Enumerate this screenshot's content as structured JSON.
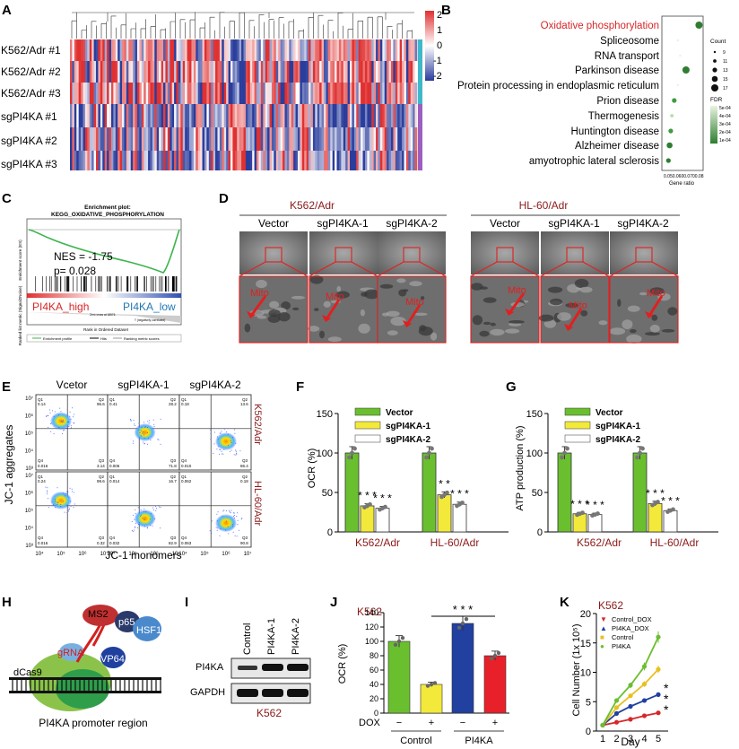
{
  "colors": {
    "red": "#d62728",
    "blue": "#2140a0",
    "green": "#6abf2e",
    "yellow": "#f2e93b",
    "darkred": "#8b1a1a",
    "teal": "#3fb8c8",
    "heat_red": "#e03030",
    "heat_blue": "#2a3d9c"
  },
  "panels": {
    "A": "A",
    "B": "B",
    "C": "C",
    "D": "D",
    "E": "E",
    "F": "F",
    "G": "G",
    "H": "H",
    "I": "I",
    "J": "J",
    "K": "K"
  },
  "panel_a": {
    "rows": [
      "K562/Adr #1",
      "K562/Adr #2",
      "K562/Adr #3",
      "sgPI4KA #1",
      "sgPI4KA #2",
      "sgPI4KA #3"
    ],
    "scale_ticks": [
      "2",
      "1",
      "0",
      "-1",
      "-2"
    ]
  },
  "panel_b": {
    "terms": [
      "Oxidative phosphorylation",
      "Spliceosome",
      "RNA transport",
      "Parkinson disease",
      "Protein processing in endoplasmic reticulum",
      "Prion disease",
      "Thermogenesis",
      "Huntington disease",
      "Alzheimer disease",
      "amyotrophic lateral sclerosis"
    ],
    "count_title": "Count",
    "count_values": [
      "9",
      "11",
      "13",
      "15",
      "17"
    ],
    "fdr_title": "FDR",
    "fdr_values": [
      "5e-04",
      "4e-04",
      "3e-04",
      "2e-04",
      "1e-04"
    ],
    "xlabel": "Gene ratio",
    "xticks": "0.050.0600.0700.08"
  },
  "panel_c": {
    "title": "Enrichment plot:",
    "subtitle": "KEGG_OXIDATIVE_PHOSPHORYLATION",
    "nes": "NES = -1.75",
    "p": "p= 0.028",
    "high": "PI4KA_high",
    "low": "PI4KA_low",
    "ylabel_top": "Enrichment score (ES)",
    "ylabel_bot": "Ranked list metric (Signal2Noise)",
    "xlabel": "Rank in Ordered Dataset",
    "legend": [
      "Enrichment profile",
      "Hits",
      "Ranking metric scores"
    ],
    "zero_note": "Zero cross at 18576",
    "neg_note": "'l' (negatively correlated)"
  },
  "panel_d": {
    "groups": [
      "K562/Adr",
      "HL-60/Adr"
    ],
    "cols": [
      "Vector",
      "sgPI4KA-1",
      "sgPI4KA-2"
    ],
    "mito": "Mito"
  },
  "panel_e": {
    "cols": [
      "Vcetor",
      "sgPI4KA-1",
      "sgPI4KA-2"
    ],
    "rows": [
      "K562/Adr",
      "HL-60/Adr"
    ],
    "ylabel": "JC-1 aggregates",
    "xlabel": "JC-1 monomers",
    "y_ticks": [
      "10⁷",
      "10⁶",
      "10⁵",
      "10⁴",
      "10³"
    ],
    "x_ticks": [
      "10⁴",
      "10⁵",
      "10⁶",
      "10⁷"
    ],
    "q_labels": [
      "Q1",
      "Q2",
      "Q3",
      "Q4"
    ],
    "q2_values": [
      "96.6",
      "28.2",
      "13.6",
      "99.6",
      "16.7",
      "0.18"
    ],
    "q4_values": [
      "0.016",
      "0.006",
      "0.010",
      "0.016",
      "0.032",
      "0.063"
    ],
    "q1_values": [
      "0.14",
      "0.41",
      "0.18",
      "0.24",
      "0.014",
      "0.062"
    ],
    "q3_values": [
      "3.14",
      "71.8",
      "86.4",
      "0.32",
      "82.9",
      "90.8"
    ]
  },
  "panel_f": {
    "ylabel": "OCR (%)",
    "legend": [
      "Vector",
      "sgPI4KA-1",
      "sgPI4KA-2"
    ],
    "yticks": [
      "0",
      "50",
      "100",
      "150"
    ],
    "groups": [
      "K562/Adr",
      "HL-60/Adr"
    ],
    "sig": [
      "* * *",
      "* * *",
      "* *",
      "* * *"
    ]
  },
  "panel_g": {
    "ylabel": "ATP production (%)",
    "legend": [
      "Vector",
      "sgPI4KA-1",
      "sgPI4KA-2"
    ],
    "yticks": [
      "0",
      "50",
      "100",
      "150"
    ],
    "groups": [
      "K562/Adr",
      "HL-60/Adr"
    ],
    "sig": [
      "* * *",
      "* * *",
      "* * *",
      "* * *"
    ]
  },
  "panel_h": {
    "labels": [
      "MS2",
      "p65",
      "HSF1",
      "gRNA",
      "VP64",
      "dCas9"
    ],
    "caption": "PI4KA promoter region"
  },
  "panel_i": {
    "lanes": [
      "Control",
      "PI4KA-1",
      "PI4KA-2"
    ],
    "bands": [
      "PI4KA",
      "GAPDH"
    ],
    "cell": "K562"
  },
  "panel_j": {
    "cell": "K562",
    "ylabel": "OCR (%)",
    "yticks": [
      "0",
      "20",
      "40",
      "60",
      "80",
      "100",
      "120",
      "140"
    ],
    "dox": "DOX",
    "signs": [
      "−",
      "+",
      "−",
      "+"
    ],
    "groups": [
      "Control",
      "PI4KA"
    ],
    "sig": "* * *"
  },
  "panel_k": {
    "cell": "K562",
    "ylabel": "Cell Number (1x 10⁵)",
    "xlabel": "Day",
    "yticks": [
      "0",
      "5",
      "10",
      "15",
      "20"
    ],
    "xticks": [
      "1",
      "2",
      "3",
      "4",
      "5"
    ],
    "legend": [
      "Control_DOX",
      "PI4KA_DOX",
      "Control",
      "PI4KA"
    ],
    "sig": "* * *"
  },
  "chart_data": [
    {
      "type": "heatmap",
      "title": "A",
      "rows": [
        "K562/Adr #1",
        "K562/Adr #2",
        "K562/Adr #3",
        "sgPI4KA #1",
        "sgPI4KA #2",
        "sgPI4KA #3"
      ],
      "scale": [
        -2,
        2
      ]
    },
    {
      "type": "scatter",
      "title": "B",
      "terms": [
        "Oxidative phosphorylation",
        "Spliceosome",
        "RNA transport",
        "Parkinson disease",
        "Protein processing in endoplasmic reticulum",
        "Prion disease",
        "Thermogenesis",
        "Huntington disease",
        "Alzheimer disease",
        "amyotrophic lateral sclerosis"
      ],
      "gene_ratio": [
        0.08,
        0.062,
        0.064,
        0.069,
        0.062,
        0.059,
        0.057,
        0.056,
        0.055,
        0.054
      ],
      "count": [
        17,
        9,
        9,
        17,
        9,
        13,
        11,
        13,
        15,
        13
      ]
    },
    {
      "type": "bar",
      "title": "F",
      "ylabel": "OCR (%)",
      "categories": [
        "K562/Adr",
        "HL-60/Adr"
      ],
      "series": [
        {
          "name": "Vector",
          "values": [
            100,
            100
          ]
        },
        {
          "name": "sgPI4KA-1",
          "values": [
            33,
            47
          ]
        },
        {
          "name": "sgPI4KA-2",
          "values": [
            30,
            35
          ]
        }
      ],
      "ylim": [
        0,
        150
      ]
    },
    {
      "type": "bar",
      "title": "G",
      "ylabel": "ATP production (%)",
      "categories": [
        "K562/Adr",
        "HL-60/Adr"
      ],
      "series": [
        {
          "name": "Vector",
          "values": [
            100,
            100
          ]
        },
        {
          "name": "sgPI4KA-1",
          "values": [
            23,
            36
          ]
        },
        {
          "name": "sgPI4KA-2",
          "values": [
            22,
            27
          ]
        }
      ],
      "ylim": [
        0,
        150
      ]
    },
    {
      "type": "bar",
      "title": "J",
      "ylabel": "OCR (%)",
      "categories": [
        "Control −",
        "Control +",
        "PI4KA −",
        "PI4KA +"
      ],
      "values": [
        100,
        40,
        125,
        80
      ],
      "ylim": [
        0,
        140
      ]
    },
    {
      "type": "line",
      "title": "K",
      "ylabel": "Cell Number (1x 10⁵)",
      "xlabel": "Day",
      "x": [
        1,
        2,
        3,
        4,
        5
      ],
      "series": [
        {
          "name": "Control_DOX",
          "values": [
            1,
            1.5,
            2,
            2.6,
            3.1
          ]
        },
        {
          "name": "PI4KA_DOX",
          "values": [
            1,
            3,
            4.2,
            5.2,
            6.2
          ]
        },
        {
          "name": "Control",
          "values": [
            1,
            4,
            6,
            8,
            10.5
          ]
        },
        {
          "name": "PI4KA",
          "values": [
            1,
            5.2,
            7.8,
            11,
            16
          ]
        }
      ],
      "ylim": [
        0,
        20
      ]
    }
  ]
}
